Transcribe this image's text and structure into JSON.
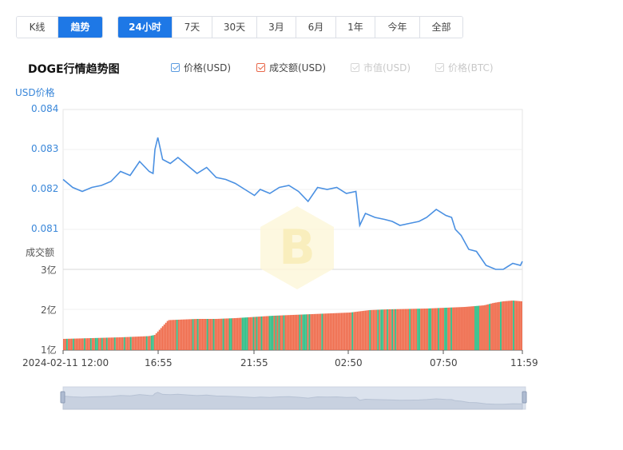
{
  "view_tabs": [
    "K线",
    "趋势"
  ],
  "active_view": "趋势",
  "range_tabs": [
    "24小时",
    "7天",
    "30天",
    "3月",
    "6月",
    "1年",
    "今年",
    "全部"
  ],
  "active_range": "24小时",
  "title": "DOGE行情趋势图",
  "legend": [
    {
      "label": "价格(USD)",
      "checked": true,
      "color": "#5b9be0"
    },
    {
      "label": "成交额(USD)",
      "checked": true,
      "color": "#e8684a"
    },
    {
      "label": "市值(USD)",
      "checked": false,
      "color": "#d6d6d6"
    },
    {
      "label": "价格(BTC)",
      "checked": false,
      "color": "#d6d6d6"
    }
  ],
  "chart_data": {
    "type": "line",
    "price_axis": {
      "label": "USD价格",
      "ticks": [
        "0.084",
        "0.083",
        "0.082",
        "0.081"
      ],
      "ylim": [
        0.0805,
        0.084
      ]
    },
    "volume_axis": {
      "label": "成交额",
      "ticks": [
        "3亿",
        "2亿",
        "1亿"
      ],
      "ylim": [
        1,
        3
      ]
    },
    "x_ticks": [
      "2024-02-11 12:00",
      "16:55",
      "21:55",
      "02:50",
      "07:50",
      "11:59"
    ],
    "price_series": {
      "name": "价格(USD)",
      "color": "#4a90e2",
      "x": [
        0,
        0.5,
        1,
        1.5,
        2,
        2.5,
        3,
        3.5,
        4,
        4.5,
        4.7,
        4.8,
        4.95,
        5.2,
        5.6,
        6,
        6.5,
        7,
        7.5,
        8,
        8.5,
        9,
        9.5,
        10,
        10.3,
        10.8,
        11.3,
        11.8,
        12.3,
        12.8,
        13.3,
        13.8,
        14.3,
        14.8,
        15.3,
        15.5,
        15.8,
        16.3,
        16.8,
        17.2,
        17.6,
        18.1,
        18.6,
        19,
        19.5,
        20,
        20.3,
        20.5,
        20.8,
        21.2,
        21.6,
        22.1,
        22.6,
        23,
        23.5,
        23.9,
        24
      ],
      "values": [
        0.08225,
        0.08205,
        0.08195,
        0.08205,
        0.0821,
        0.0822,
        0.08245,
        0.08235,
        0.0827,
        0.08245,
        0.0824,
        0.083,
        0.0833,
        0.08275,
        0.08265,
        0.0828,
        0.0826,
        0.0824,
        0.08255,
        0.0823,
        0.08225,
        0.08215,
        0.082,
        0.08185,
        0.082,
        0.0819,
        0.08205,
        0.0821,
        0.08195,
        0.0817,
        0.08205,
        0.082,
        0.08205,
        0.0819,
        0.08195,
        0.0811,
        0.0814,
        0.0813,
        0.08125,
        0.0812,
        0.0811,
        0.08115,
        0.0812,
        0.0813,
        0.0815,
        0.08135,
        0.0813,
        0.081,
        0.08085,
        0.0805,
        0.08045,
        0.0801,
        0.08,
        0.08,
        0.08015,
        0.0801,
        0.0802
      ]
    },
    "volume_series": {
      "name": "成交额(USD)",
      "up_color": "#2ebd85",
      "down_color": "#ef6a4a",
      "x": [
        0,
        1.5,
        3,
        4.5,
        4.8,
        5.5,
        7,
        8,
        9,
        10,
        11,
        12,
        13,
        14,
        15,
        16,
        17,
        18,
        19,
        20,
        21,
        22,
        22.5,
        23,
        23.5,
        24
      ],
      "values": [
        1.28,
        1.3,
        1.32,
        1.35,
        1.38,
        1.75,
        1.78,
        1.78,
        1.8,
        1.83,
        1.86,
        1.88,
        1.9,
        1.92,
        1.94,
        2.0,
        2.02,
        2.03,
        2.04,
        2.06,
        2.08,
        2.12,
        2.18,
        2.22,
        2.24,
        2.22
      ]
    },
    "grid": true,
    "watermark": "B"
  }
}
